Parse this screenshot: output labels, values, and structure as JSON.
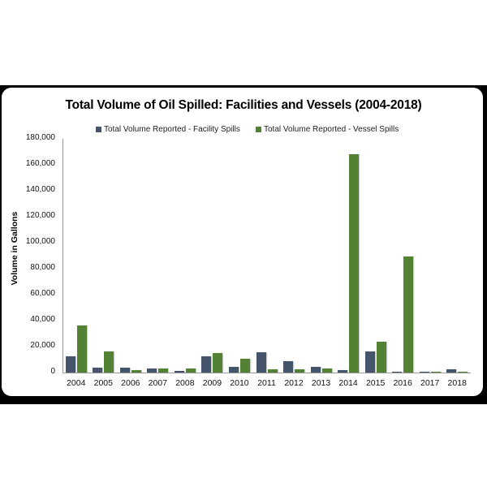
{
  "chart_data": {
    "type": "bar",
    "title": "Total Volume of Oil Spilled: Facilities and Vessels (2004-2018)",
    "xlabel": "",
    "ylabel": "Volume in Gallons",
    "ylim": [
      0,
      180000
    ],
    "yticks": [
      "0",
      "20,000",
      "40,000",
      "60,000",
      "80,000",
      "100,000",
      "120,000",
      "140,000",
      "160,000",
      "180,000"
    ],
    "grid": false,
    "legend_position": "top",
    "categories": [
      "2004",
      "2005",
      "2006",
      "2007",
      "2008",
      "2009",
      "2010",
      "2011",
      "2012",
      "2013",
      "2014",
      "2015",
      "2016",
      "2017",
      "2018"
    ],
    "series": [
      {
        "name": "Total Volume Reported - Facility Spills",
        "color": "#44546a",
        "values": [
          12500,
          3800,
          3500,
          3000,
          1200,
          12500,
          4200,
          15400,
          8900,
          4200,
          2100,
          16000,
          800,
          800,
          2300
        ]
      },
      {
        "name": "Total Volume Reported - Vessel Spills",
        "color": "#548235",
        "values": [
          36300,
          16300,
          2000,
          3000,
          3300,
          15000,
          10400,
          2700,
          2700,
          3300,
          168000,
          23500,
          89500,
          300,
          300
        ]
      }
    ]
  }
}
